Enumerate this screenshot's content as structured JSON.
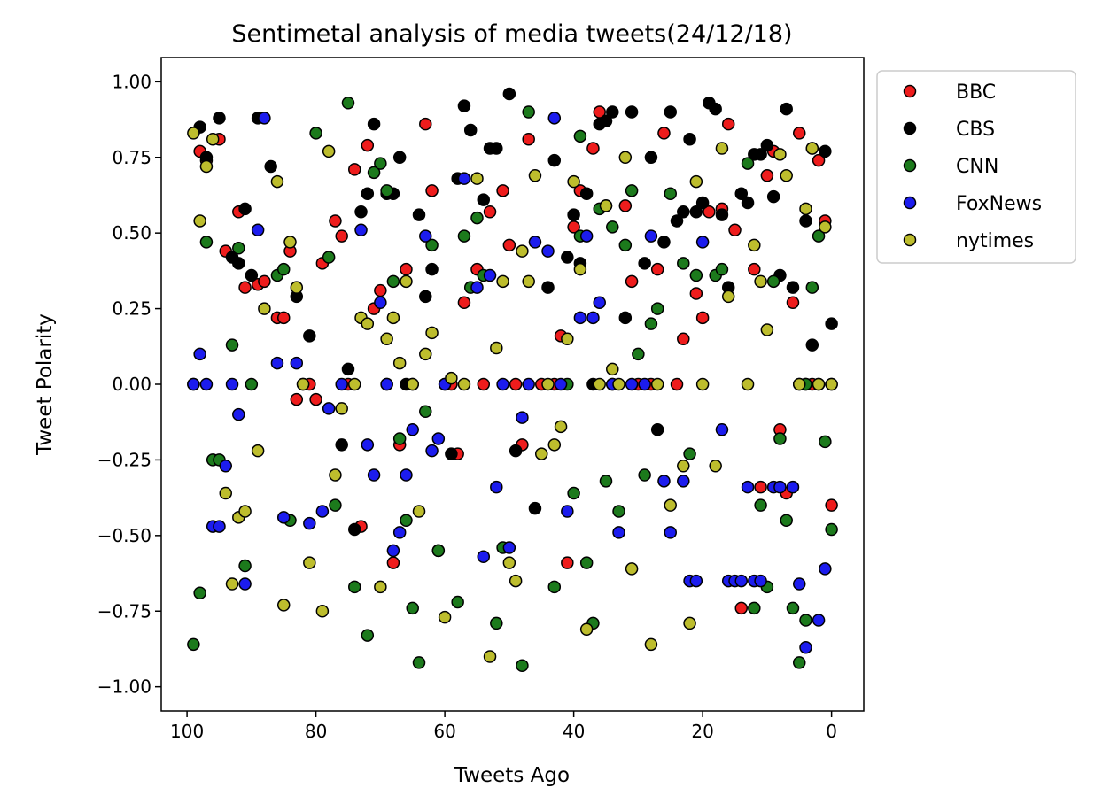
{
  "chart_data": {
    "type": "scatter",
    "title": "Sentimetal analysis of media tweets(24/12/18)",
    "xlabel": "Tweets Ago",
    "ylabel": "Tweet Polarity",
    "xlim": [
      104,
      -5
    ],
    "ylim": [
      -1.08,
      1.08
    ],
    "x_ticks": [
      100,
      80,
      60,
      40,
      20,
      0
    ],
    "x_tick_labels": [
      "100",
      "80",
      "60",
      "40",
      "20",
      "0"
    ],
    "y_ticks": [
      1.0,
      0.75,
      0.5,
      0.25,
      0.0,
      -0.25,
      -0.5,
      -0.75,
      -1.0
    ],
    "y_tick_labels": [
      "1.00",
      "0.75",
      "0.50",
      "0.25",
      "0.00",
      "−0.25",
      "−0.50",
      "−0.75",
      "−1.00"
    ],
    "grid": false,
    "legend_position": "outside-right",
    "series": [
      {
        "name": "BBC",
        "color": "#ee1c1c",
        "x": [
          99,
          98,
          97,
          95,
          94,
          92,
          91,
          89,
          88,
          86,
          85,
          84,
          83,
          81,
          80,
          79,
          77,
          76,
          75,
          74,
          73,
          72,
          71,
          70,
          69,
          68,
          67,
          66,
          65,
          63,
          62,
          61,
          59,
          58,
          57,
          55,
          54,
          53,
          51,
          50,
          49,
          48,
          47,
          45,
          43,
          42,
          41,
          40,
          39,
          37,
          36,
          35,
          34,
          32,
          31,
          30,
          28,
          27,
          26,
          24,
          23,
          21,
          20,
          19,
          17,
          16,
          15,
          14,
          12,
          11,
          10,
          9,
          8,
          7,
          6,
          5,
          4,
          3,
          2,
          1,
          0
        ],
        "y": [
          0.0,
          0.77,
          0.74,
          0.81,
          0.44,
          0.57,
          0.32,
          0.33,
          0.34,
          0.22,
          0.22,
          0.44,
          -0.05,
          0.0,
          -0.05,
          0.4,
          0.54,
          0.49,
          0.0,
          0.71,
          -0.47,
          0.79,
          0.25,
          0.31,
          0.0,
          -0.59,
          -0.2,
          0.38,
          0.0,
          0.86,
          0.64,
          -0.55,
          0.0,
          -0.23,
          0.27,
          0.38,
          0.0,
          0.57,
          0.64,
          0.46,
          0.0,
          -0.2,
          0.81,
          0.0,
          0.0,
          0.16,
          -0.59,
          0.52,
          0.64,
          0.78,
          0.9,
          0.59,
          0.0,
          0.59,
          0.34,
          0.0,
          0.0,
          0.38,
          0.83,
          0.0,
          0.15,
          0.3,
          0.22,
          0.57,
          0.58,
          0.86,
          0.51,
          -0.74,
          0.38,
          -0.34,
          0.69,
          0.77,
          -0.15,
          -0.36,
          0.27,
          0.83,
          0.0,
          0.0,
          0.74,
          0.54,
          -0.4
        ]
      },
      {
        "name": "CBS",
        "color": "#000000",
        "x": [
          98,
          97,
          95,
          93,
          92,
          91,
          90,
          89,
          87,
          83,
          81,
          76,
          75,
          74,
          73,
          72,
          71,
          69,
          68,
          67,
          66,
          64,
          63,
          62,
          60,
          59,
          58,
          57,
          56,
          54,
          53,
          52,
          50,
          49,
          46,
          44,
          43,
          41,
          40,
          39,
          38,
          37,
          36,
          35,
          34,
          32,
          31,
          29,
          28,
          27,
          26,
          25,
          24,
          23,
          22,
          21,
          20,
          19,
          18,
          17,
          16,
          14,
          13,
          12,
          11,
          10,
          9,
          8,
          7,
          6,
          5,
          4,
          3,
          2,
          1,
          0
        ],
        "y": [
          0.85,
          0.75,
          0.88,
          0.42,
          0.4,
          0.58,
          0.36,
          0.88,
          0.72,
          0.29,
          0.16,
          -0.2,
          0.05,
          -0.48,
          0.57,
          0.63,
          0.86,
          0.63,
          0.63,
          0.75,
          0.0,
          0.56,
          0.29,
          0.38,
          0.0,
          -0.23,
          0.68,
          0.92,
          0.84,
          0.61,
          0.78,
          0.78,
          0.96,
          -0.22,
          -0.41,
          0.32,
          0.74,
          0.42,
          0.56,
          0.4,
          0.63,
          0.0,
          0.86,
          0.87,
          0.9,
          0.22,
          0.9,
          0.4,
          0.75,
          -0.15,
          0.47,
          0.9,
          0.54,
          0.57,
          0.81,
          0.57,
          0.6,
          0.93,
          0.91,
          0.56,
          0.32,
          0.63,
          0.6,
          0.76,
          0.76,
          0.79,
          0.62,
          0.36,
          0.91,
          0.32,
          0.0,
          0.54,
          0.13,
          0.0,
          0.77,
          0.2
        ]
      },
      {
        "name": "CNN",
        "color": "#1c7a1c",
        "x": [
          99,
          98,
          97,
          96,
          95,
          93,
          92,
          91,
          90,
          86,
          85,
          84,
          82,
          80,
          78,
          77,
          75,
          74,
          72,
          71,
          70,
          69,
          68,
          67,
          66,
          65,
          64,
          63,
          62,
          61,
          58,
          57,
          56,
          55,
          54,
          52,
          51,
          48,
          47,
          40,
          39,
          38,
          37,
          36,
          35,
          34,
          33,
          32,
          31,
          30,
          29,
          28,
          27,
          25,
          23,
          22,
          21,
          18,
          17,
          13,
          12,
          11,
          10,
          9,
          8,
          7,
          6,
          5,
          4,
          3,
          2,
          1,
          0,
          4,
          39,
          41,
          43
        ],
        "y": [
          -0.86,
          -0.69,
          0.47,
          -0.25,
          -0.25,
          0.13,
          0.45,
          -0.6,
          0.0,
          0.36,
          0.38,
          -0.45,
          0.0,
          0.83,
          0.42,
          -0.4,
          0.93,
          -0.67,
          -0.83,
          0.7,
          0.73,
          0.64,
          0.34,
          -0.18,
          -0.45,
          -0.74,
          -0.92,
          -0.09,
          0.46,
          -0.55,
          -0.72,
          0.49,
          0.32,
          0.55,
          0.36,
          -0.79,
          -0.54,
          -0.93,
          0.9,
          -0.36,
          0.49,
          -0.59,
          -0.79,
          0.58,
          -0.32,
          0.52,
          -0.42,
          0.46,
          0.64,
          0.1,
          -0.3,
          0.2,
          0.25,
          0.63,
          0.4,
          -0.23,
          0.36,
          0.36,
          0.38,
          0.73,
          -0.74,
          -0.4,
          -0.67,
          0.34,
          -0.18,
          -0.45,
          -0.74,
          -0.92,
          -0.78,
          0.32,
          0.49,
          -0.19,
          -0.48,
          0.0,
          0.82,
          0.0,
          -0.67
        ]
      },
      {
        "name": "FoxNews",
        "color": "#1c1cee",
        "x": [
          99,
          98,
          97,
          96,
          95,
          94,
          93,
          92,
          91,
          89,
          88,
          86,
          85,
          83,
          81,
          79,
          78,
          76,
          73,
          72,
          71,
          70,
          69,
          68,
          67,
          66,
          65,
          63,
          62,
          61,
          60,
          57,
          55,
          54,
          53,
          52,
          51,
          50,
          48,
          47,
          46,
          44,
          43,
          42,
          41,
          39,
          38,
          37,
          36,
          34,
          33,
          31,
          29,
          28,
          26,
          25,
          23,
          22,
          21,
          20,
          17,
          16,
          15,
          14,
          13,
          12,
          11,
          9,
          8,
          6,
          5,
          4,
          3,
          2,
          1,
          0
        ],
        "y": [
          0.0,
          0.1,
          0.0,
          -0.47,
          -0.47,
          -0.27,
          0.0,
          -0.1,
          -0.66,
          0.51,
          0.88,
          0.07,
          -0.44,
          0.07,
          -0.46,
          -0.42,
          -0.08,
          0.0,
          0.51,
          -0.2,
          -0.3,
          0.27,
          0.0,
          -0.55,
          -0.49,
          -0.3,
          -0.15,
          0.49,
          -0.22,
          -0.18,
          0.0,
          0.68,
          0.32,
          -0.57,
          0.36,
          -0.34,
          0.0,
          -0.54,
          -0.11,
          0.0,
          0.47,
          0.44,
          0.88,
          0.0,
          -0.42,
          0.22,
          0.49,
          0.22,
          0.27,
          0.0,
          -0.49,
          0.0,
          0.0,
          0.49,
          -0.32,
          -0.49,
          -0.32,
          -0.65,
          -0.65,
          0.47,
          -0.15,
          -0.65,
          -0.65,
          -0.65,
          -0.34,
          -0.65,
          -0.65,
          -0.34,
          -0.34,
          -0.34,
          -0.66,
          -0.87,
          0.78,
          -0.78,
          -0.61,
          0.0
        ]
      },
      {
        "name": "nytimes",
        "color": "#bdbd2d",
        "x": [
          99,
          98,
          97,
          96,
          94,
          93,
          92,
          91,
          89,
          88,
          86,
          85,
          84,
          83,
          82,
          81,
          79,
          78,
          77,
          76,
          74,
          73,
          72,
          70,
          69,
          68,
          67,
          66,
          65,
          64,
          63,
          62,
          60,
          59,
          57,
          55,
          53,
          52,
          51,
          50,
          49,
          48,
          47,
          46,
          45,
          44,
          43,
          42,
          41,
          40,
          39,
          38,
          36,
          35,
          34,
          33,
          32,
          31,
          28,
          27,
          25,
          23,
          22,
          21,
          20,
          18,
          17,
          16,
          13,
          12,
          11,
          10,
          8,
          7,
          5,
          4,
          3,
          2,
          1,
          0
        ],
        "y": [
          0.83,
          0.54,
          0.72,
          0.81,
          -0.36,
          -0.66,
          -0.44,
          -0.42,
          -0.22,
          0.25,
          0.67,
          -0.73,
          0.47,
          0.32,
          0.0,
          -0.59,
          -0.75,
          0.77,
          -0.3,
          -0.08,
          0.0,
          0.22,
          0.2,
          -0.67,
          0.15,
          0.22,
          0.07,
          0.34,
          0.0,
          -0.42,
          0.1,
          0.17,
          -0.77,
          0.02,
          0.0,
          0.68,
          -0.9,
          0.12,
          0.34,
          -0.59,
          -0.65,
          0.44,
          0.34,
          0.69,
          -0.23,
          0.0,
          -0.2,
          -0.14,
          0.15,
          0.67,
          0.38,
          -0.81,
          0.0,
          0.59,
          0.05,
          0.0,
          0.75,
          -0.61,
          -0.86,
          0.0,
          -0.4,
          -0.27,
          -0.79,
          0.67,
          0.0,
          -0.27,
          0.78,
          0.29,
          0.0,
          0.46,
          0.34,
          0.18,
          0.76,
          0.69,
          0.0,
          0.58,
          0.78,
          0.0,
          0.52,
          0.0
        ]
      }
    ]
  }
}
